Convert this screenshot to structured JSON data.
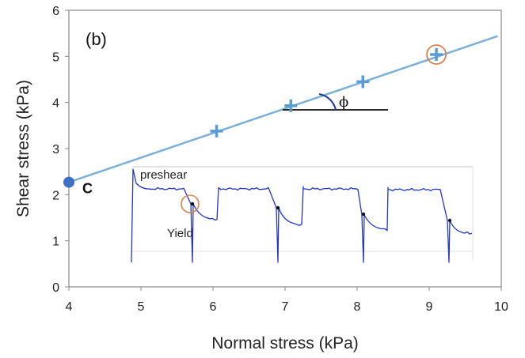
{
  "chart_data": {
    "type": "scatter",
    "panel_label": "(b)",
    "xlabel": "Normal stress (kPa)",
    "ylabel": "Shear stress (kPa)",
    "xlim": [
      4,
      10
    ],
    "ylim": [
      0,
      6
    ],
    "xticks": [
      "4",
      "5",
      "6",
      "7",
      "8",
      "9",
      "10"
    ],
    "yticks": [
      "0",
      "1",
      "2",
      "3",
      "4",
      "5",
      "6"
    ],
    "grid": false,
    "series": [
      {
        "points": [
          {
            "x": 6.05,
            "y": 3.38
          },
          {
            "x": 7.08,
            "y": 3.93
          },
          {
            "x": 8.08,
            "y": 4.45
          },
          {
            "x": 9.1,
            "y": 5.04
          }
        ],
        "marker": "plus",
        "color": "#5b9bd5"
      }
    ],
    "fit_line": {
      "x": [
        4.0,
        9.95
      ],
      "y": [
        2.27,
        5.44
      ],
      "color": "#7ab0d8"
    },
    "cohesion_point": {
      "x": 4.0,
      "y": 2.27,
      "label": "C",
      "color": "#3d6fc2"
    },
    "highlight_circle": {
      "x": 9.1,
      "y": 5.04,
      "color": "#d9824a"
    },
    "friction_angle": {
      "label": "ϕ"
    },
    "inset": {
      "type": "line",
      "annotations": {
        "preshear": "preshear",
        "yield": "Yield"
      },
      "color": "#2236c8"
    }
  }
}
